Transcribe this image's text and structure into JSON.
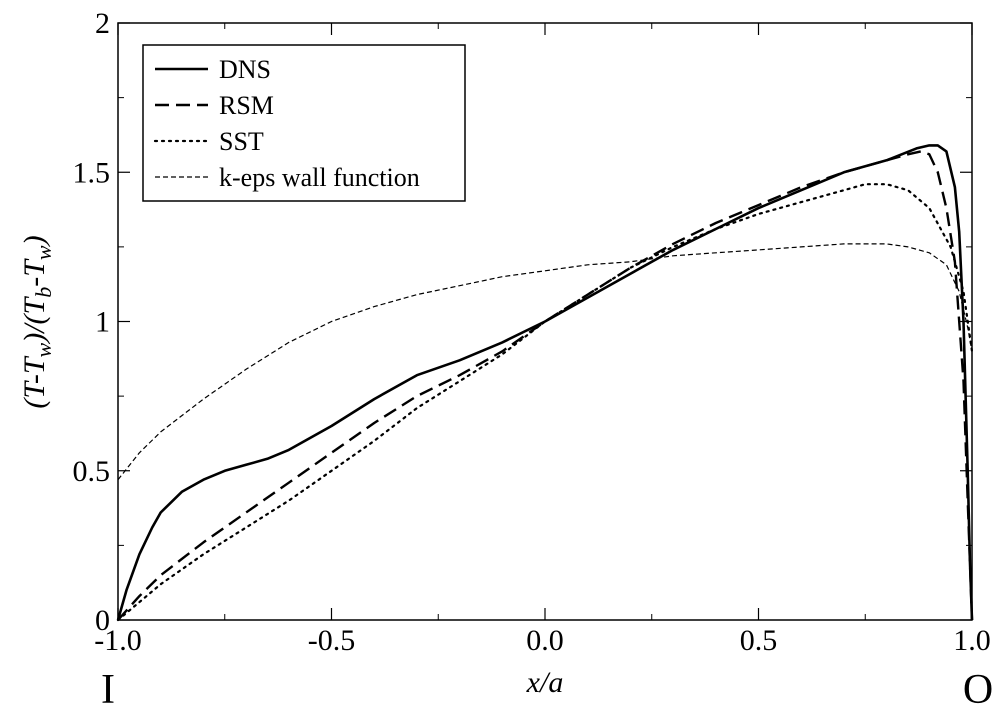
{
  "chart_data": {
    "type": "line",
    "xlabel": "x/a",
    "ylabel_parts": [
      "(T-T",
      "w",
      ")/(T",
      "b",
      "-T",
      "w",
      ")"
    ],
    "xlim": [
      -1.0,
      1.0
    ],
    "ylim": [
      0,
      2
    ],
    "x_ticks": [
      -1.0,
      -0.5,
      0.0,
      0.5,
      1.0
    ],
    "x_tick_labels": [
      "-1.0",
      "-0.5",
      "0.0",
      "0.5",
      "1.0"
    ],
    "y_ticks": [
      0,
      0.5,
      1,
      1.5,
      2
    ],
    "y_tick_labels": [
      "0",
      "0.5",
      "1",
      "1.5",
      "2"
    ],
    "grid": false,
    "legend_position": "top-left",
    "corner_labels": {
      "left": "I",
      "right": "O"
    },
    "series": [
      {
        "name": "DNS",
        "style": "solid",
        "x": [
          -1.0,
          -0.98,
          -0.95,
          -0.92,
          -0.9,
          -0.85,
          -0.8,
          -0.75,
          -0.7,
          -0.65,
          -0.6,
          -0.5,
          -0.4,
          -0.3,
          -0.2,
          -0.1,
          0.0,
          0.1,
          0.2,
          0.3,
          0.4,
          0.5,
          0.6,
          0.7,
          0.8,
          0.87,
          0.9,
          0.92,
          0.94,
          0.96,
          0.97,
          0.98,
          0.99,
          0.995,
          1.0
        ],
        "y": [
          0.0,
          0.1,
          0.22,
          0.31,
          0.36,
          0.43,
          0.47,
          0.5,
          0.52,
          0.54,
          0.57,
          0.65,
          0.74,
          0.82,
          0.87,
          0.93,
          1.0,
          1.08,
          1.16,
          1.24,
          1.31,
          1.38,
          1.44,
          1.5,
          1.54,
          1.58,
          1.59,
          1.59,
          1.57,
          1.45,
          1.3,
          1.0,
          0.5,
          0.2,
          0.0
        ]
      },
      {
        "name": "RSM",
        "style": "dashed",
        "x": [
          -1.0,
          -0.95,
          -0.9,
          -0.8,
          -0.7,
          -0.6,
          -0.5,
          -0.4,
          -0.3,
          -0.2,
          -0.1,
          0.0,
          0.1,
          0.2,
          0.3,
          0.4,
          0.5,
          0.6,
          0.7,
          0.8,
          0.85,
          0.88,
          0.9,
          0.92,
          0.94,
          0.96,
          0.98,
          0.99,
          1.0
        ],
        "y": [
          0.0,
          0.08,
          0.15,
          0.26,
          0.36,
          0.46,
          0.56,
          0.66,
          0.75,
          0.82,
          0.9,
          1.0,
          1.09,
          1.18,
          1.26,
          1.33,
          1.39,
          1.45,
          1.5,
          1.54,
          1.56,
          1.57,
          1.56,
          1.5,
          1.38,
          1.2,
          0.8,
          0.4,
          0.0
        ]
      },
      {
        "name": "SST",
        "style": "dotted",
        "x": [
          -1.0,
          -0.95,
          -0.9,
          -0.8,
          -0.7,
          -0.6,
          -0.5,
          -0.4,
          -0.3,
          -0.2,
          -0.1,
          0.0,
          0.1,
          0.2,
          0.3,
          0.4,
          0.5,
          0.6,
          0.7,
          0.75,
          0.8,
          0.85,
          0.9,
          0.95,
          0.98,
          1.0
        ],
        "y": [
          0.0,
          0.06,
          0.12,
          0.22,
          0.31,
          0.4,
          0.5,
          0.6,
          0.71,
          0.8,
          0.89,
          1.0,
          1.09,
          1.18,
          1.25,
          1.31,
          1.36,
          1.4,
          1.44,
          1.46,
          1.46,
          1.44,
          1.38,
          1.25,
          1.1,
          0.9
        ]
      },
      {
        "name": "k-eps wall function",
        "style": "fine-dashed",
        "x": [
          -1.0,
          -0.95,
          -0.9,
          -0.8,
          -0.7,
          -0.6,
          -0.5,
          -0.4,
          -0.3,
          -0.2,
          -0.1,
          0.0,
          0.1,
          0.2,
          0.3,
          0.4,
          0.5,
          0.6,
          0.7,
          0.8,
          0.85,
          0.9,
          0.94,
          0.97,
          0.99,
          1.0
        ],
        "y": [
          0.47,
          0.56,
          0.63,
          0.74,
          0.84,
          0.93,
          1.0,
          1.05,
          1.09,
          1.12,
          1.15,
          1.17,
          1.19,
          1.2,
          1.22,
          1.23,
          1.24,
          1.25,
          1.26,
          1.26,
          1.25,
          1.23,
          1.19,
          1.1,
          0.98,
          0.9
        ]
      }
    ]
  }
}
